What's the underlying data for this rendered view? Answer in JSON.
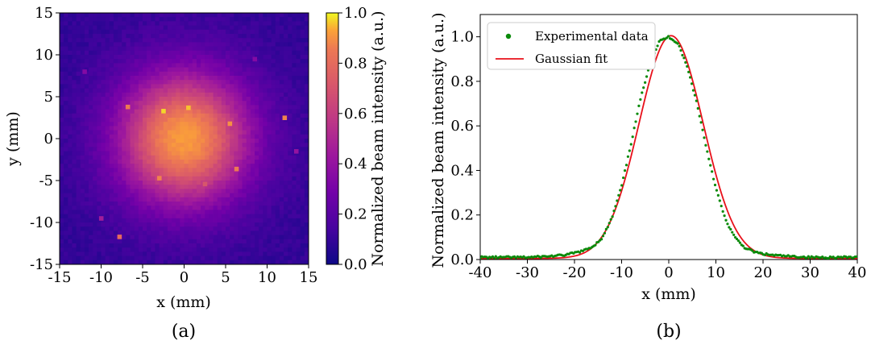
{
  "chart_data": [
    {
      "type": "heatmap",
      "caption": "(a)",
      "xlabel": "x (mm)",
      "ylabel": "y (mm)",
      "xlim": [
        -15,
        15
      ],
      "ylim": [
        -15,
        15
      ],
      "xticks": [
        "-15",
        "-10",
        "-5",
        "0",
        "5",
        "10",
        "15"
      ],
      "yticks": [
        "-15",
        "-10",
        "-5",
        "0",
        "5",
        "10",
        "15"
      ],
      "colormap": "plasma",
      "colorbar": {
        "label": "Normalized beam intensity (a.u.)",
        "range": [
          0.0,
          1.0
        ],
        "ticks": [
          "0.0",
          "0.2",
          "0.4",
          "0.6",
          "0.8",
          "1.0"
        ]
      },
      "beam": {
        "center": [
          0,
          0
        ],
        "peak": 0.85,
        "sigma_mm": 5.5,
        "background": 0.08
      },
      "hot_pixels": [
        {
          "x": -2.5,
          "y": 3.3,
          "v": 0.95
        },
        {
          "x": 0.5,
          "y": 3.7,
          "v": 0.92
        },
        {
          "x": -6.8,
          "y": 3.8,
          "v": 0.75
        },
        {
          "x": 5.5,
          "y": 1.8,
          "v": 0.82
        },
        {
          "x": 12.1,
          "y": 2.5,
          "v": 0.78
        },
        {
          "x": 6.3,
          "y": -3.6,
          "v": 0.75
        },
        {
          "x": -3.0,
          "y": -4.7,
          "v": 0.78
        },
        {
          "x": 2.5,
          "y": -5.4,
          "v": 0.62
        },
        {
          "x": -7.8,
          "y": -11.7,
          "v": 0.7
        },
        {
          "x": -10.0,
          "y": -9.5,
          "v": 0.4
        },
        {
          "x": 13.5,
          "y": -1.5,
          "v": 0.35
        },
        {
          "x": -12.0,
          "y": 8.0,
          "v": 0.3
        },
        {
          "x": 8.5,
          "y": 9.5,
          "v": 0.3
        }
      ]
    },
    {
      "type": "line",
      "caption": "(b)",
      "xlabel": "x (mm)",
      "ylabel": "Normalized beam intensity (a.u.)",
      "xlim": [
        -40,
        40
      ],
      "ylim": [
        0,
        1.1
      ],
      "xticks": [
        "-40",
        "-30",
        "-20",
        "-10",
        "0",
        "10",
        "20",
        "30",
        "40"
      ],
      "yticks": [
        "0.0",
        "0.2",
        "0.4",
        "0.6",
        "0.8",
        "1.0"
      ],
      "legend_position": "top-left",
      "series": [
        {
          "name": "Experimental data",
          "style": "points",
          "color": "#0a8a0a",
          "x": [
            -40,
            -35,
            -30,
            -25,
            -22,
            -20,
            -18,
            -16,
            -14,
            -12,
            -10,
            -8,
            -6,
            -4,
            -2,
            0,
            2,
            4,
            6,
            8,
            10,
            12,
            14,
            16,
            18,
            20,
            22,
            25,
            30,
            35,
            40
          ],
          "y": [
            0.01,
            0.01,
            0.01,
            0.015,
            0.02,
            0.03,
            0.04,
            0.06,
            0.1,
            0.19,
            0.33,
            0.52,
            0.72,
            0.88,
            0.98,
            1.0,
            0.97,
            0.86,
            0.7,
            0.5,
            0.32,
            0.18,
            0.1,
            0.055,
            0.035,
            0.025,
            0.02,
            0.015,
            0.01,
            0.01,
            0.01
          ]
        },
        {
          "name": "Gaussian fit",
          "style": "line",
          "color": "#e8101a",
          "gaussian": {
            "amplitude": 1.0,
            "center": 0.5,
            "sigma": 6.8,
            "offset": 0.005
          }
        }
      ]
    }
  ]
}
